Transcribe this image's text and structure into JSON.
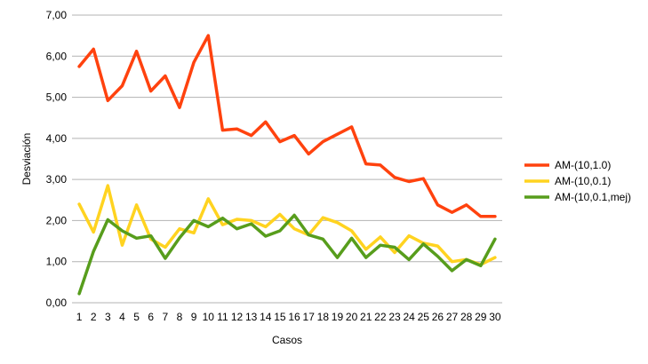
{
  "chart_data": {
    "type": "line",
    "xlabel": "Casos",
    "ylabel": "Desviación",
    "x": [
      1,
      2,
      3,
      4,
      5,
      6,
      7,
      8,
      9,
      10,
      11,
      12,
      13,
      14,
      15,
      16,
      17,
      18,
      19,
      20,
      21,
      22,
      23,
      24,
      25,
      26,
      27,
      28,
      29,
      30
    ],
    "x_tick_labels": [
      "1",
      "2",
      "3",
      "4",
      "5",
      "6",
      "7",
      "8",
      "9",
      "10",
      "11",
      "12",
      "13",
      "14",
      "15",
      "16",
      "17",
      "18",
      "19",
      "20",
      "21",
      "22",
      "23",
      "24",
      "25",
      "26",
      "27",
      "28",
      "29",
      "30"
    ],
    "ylim": [
      0,
      7
    ],
    "y_ticks": [
      0,
      1,
      2,
      3,
      4,
      5,
      6,
      7
    ],
    "y_tick_labels": [
      "0,00",
      "1,00",
      "2,00",
      "3,00",
      "4,00",
      "5,00",
      "6,00",
      "7,00"
    ],
    "grid": true,
    "legend_position": "right",
    "series": [
      {
        "name": "AM-(10,1.0)",
        "color": "#ff420e",
        "values": [
          5.75,
          6.17,
          4.92,
          5.28,
          6.12,
          5.15,
          5.52,
          4.75,
          5.85,
          6.5,
          4.2,
          4.23,
          4.07,
          4.4,
          3.92,
          4.07,
          3.62,
          3.92,
          4.1,
          4.28,
          3.38,
          3.35,
          3.05,
          2.95,
          3.02,
          2.38,
          2.2,
          2.38,
          2.1,
          2.1
        ]
      },
      {
        "name": "AM-(10,0.1)",
        "color": "#ffd320",
        "values": [
          2.4,
          1.72,
          2.85,
          1.4,
          2.38,
          1.55,
          1.35,
          1.8,
          1.7,
          2.53,
          1.9,
          2.03,
          2.0,
          1.85,
          2.15,
          1.8,
          1.65,
          2.07,
          1.95,
          1.75,
          1.3,
          1.6,
          1.22,
          1.63,
          1.45,
          1.38,
          1.0,
          1.05,
          0.93,
          1.1
        ]
      },
      {
        "name": "AM-(10,0.1,mej)",
        "color": "#579d1c",
        "values": [
          0.22,
          1.25,
          2.02,
          1.75,
          1.57,
          1.63,
          1.08,
          1.58,
          2.0,
          1.85,
          2.06,
          1.8,
          1.92,
          1.62,
          1.75,
          2.13,
          1.65,
          1.55,
          1.1,
          1.57,
          1.1,
          1.4,
          1.35,
          1.05,
          1.43,
          1.13,
          0.78,
          1.05,
          0.9,
          1.55
        ]
      }
    ]
  }
}
